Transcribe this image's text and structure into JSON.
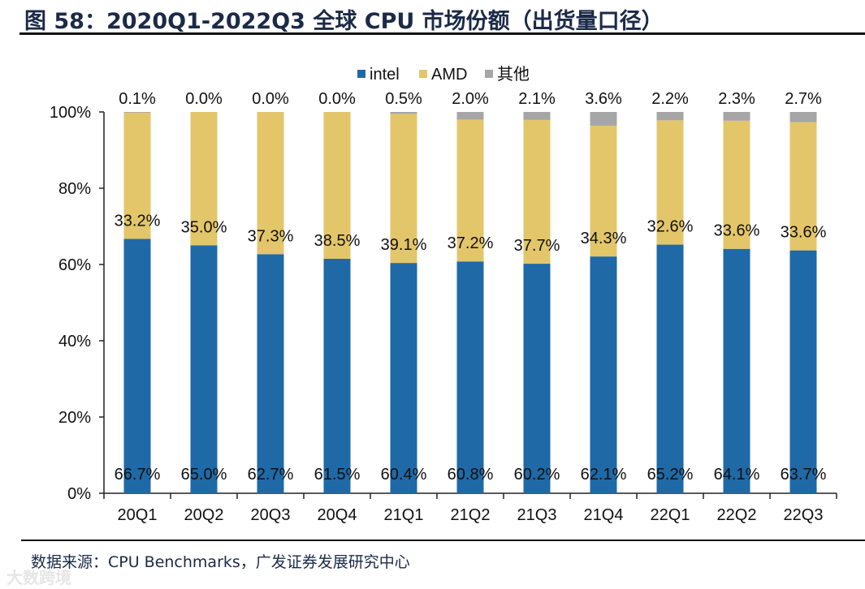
{
  "title": "图 58：2020Q1-2022Q3 全球 CPU 市场份额（出货量口径）",
  "source": "数据来源：CPU Benchmarks，广发证券发展研究中心",
  "watermark": "大数跨境",
  "colors": {
    "intel": "#1f69a6",
    "AMD": "#e3c66a",
    "other": "#a6a6a6",
    "title": "#1b2a47"
  },
  "chart_data": {
    "type": "bar",
    "stacked": true,
    "title": "2020Q1-2022Q3 全球 CPU 市场份额（出货量口径）",
    "categories": [
      "20Q1",
      "20Q2",
      "20Q3",
      "20Q4",
      "21Q1",
      "21Q2",
      "21Q3",
      "21Q4",
      "22Q1",
      "22Q2",
      "22Q3"
    ],
    "series": [
      {
        "name": "intel",
        "values": [
          66.7,
          65.0,
          62.7,
          61.5,
          60.4,
          60.8,
          60.2,
          62.1,
          65.2,
          64.1,
          63.7
        ],
        "labels": [
          "66.7%",
          "65.0%",
          "62.7%",
          "61.5%",
          "60.4%",
          "60.8%",
          "60.2%",
          "62.1%",
          "65.2%",
          "64.1%",
          "63.7%"
        ]
      },
      {
        "name": "AMD",
        "values": [
          33.2,
          35.0,
          37.3,
          38.5,
          39.1,
          37.2,
          37.7,
          34.3,
          32.6,
          33.6,
          33.6
        ],
        "labels": [
          "33.2%",
          "35.0%",
          "37.3%",
          "38.5%",
          "39.1%",
          "37.2%",
          "37.7%",
          "34.3%",
          "32.6%",
          "33.6%",
          "33.6%"
        ]
      },
      {
        "name": "其他",
        "values": [
          0.1,
          0.0,
          0.0,
          0.0,
          0.5,
          2.0,
          2.1,
          3.6,
          2.2,
          2.3,
          2.7
        ],
        "labels": [
          "0.1%",
          "0.0%",
          "0.0%",
          "0.0%",
          "0.5%",
          "2.0%",
          "2.1%",
          "3.6%",
          "2.2%",
          "2.3%",
          "2.7%"
        ]
      }
    ],
    "yticks": [
      "0%",
      "20%",
      "40%",
      "60%",
      "80%",
      "100%"
    ],
    "ylim": [
      0,
      100
    ],
    "xlabel": "",
    "ylabel": "",
    "legend": "top-center",
    "grid": false
  }
}
